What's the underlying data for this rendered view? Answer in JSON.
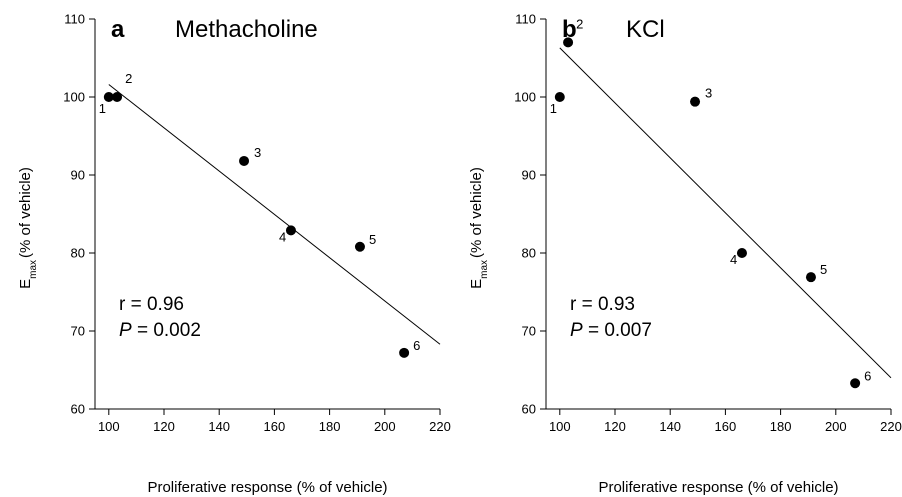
{
  "chart_data": [
    {
      "type": "scatter",
      "panel": "a",
      "title": "Methacholine",
      "xlabel": "Proliferative response (% of vehicle)",
      "ylabel_main": "E",
      "ylabel_sub": "max",
      "ylabel_rest": "(% of vehicle)",
      "xlim": [
        95,
        220
      ],
      "ylim": [
        60,
        110
      ],
      "xticks": [
        100,
        120,
        140,
        160,
        180,
        200,
        220
      ],
      "yticks": [
        60,
        70,
        80,
        90,
        100,
        110
      ],
      "points": [
        {
          "label": "1",
          "x": 100,
          "y": 100
        },
        {
          "label": "2",
          "x": 103,
          "y": 100
        },
        {
          "label": "3",
          "x": 149,
          "y": 91.8
        },
        {
          "label": "4",
          "x": 166,
          "y": 82.9
        },
        {
          "label": "5",
          "x": 191,
          "y": 80.8
        },
        {
          "label": "6",
          "x": 207,
          "y": 67.2
        }
      ],
      "fit": {
        "x": [
          100,
          220
        ],
        "y": [
          101.6,
          68.3
        ]
      },
      "stats": {
        "r_text": "r = 0.96",
        "p_symbol": "P",
        "p_value_text": " = 0.002"
      }
    },
    {
      "type": "scatter",
      "panel": "b",
      "title": "KCl",
      "xlabel": "Proliferative response (% of vehicle)",
      "ylabel_main": "E",
      "ylabel_sub": "max",
      "ylabel_rest": "(% of vehicle)",
      "xlim": [
        95,
        220
      ],
      "ylim": [
        60,
        110
      ],
      "xticks": [
        100,
        120,
        140,
        160,
        180,
        200,
        220
      ],
      "yticks": [
        60,
        70,
        80,
        90,
        100,
        110
      ],
      "points": [
        {
          "label": "1",
          "x": 100,
          "y": 100
        },
        {
          "label": "2",
          "x": 103,
          "y": 107
        },
        {
          "label": "3",
          "x": 149,
          "y": 99.4
        },
        {
          "label": "4",
          "x": 166,
          "y": 80
        },
        {
          "label": "5",
          "x": 191,
          "y": 76.9
        },
        {
          "label": "6",
          "x": 207,
          "y": 63.3
        }
      ],
      "fit": {
        "x": [
          100,
          220
        ],
        "y": [
          106.3,
          64
        ]
      },
      "stats": {
        "r_text": "r = 0.93",
        "p_symbol": "P",
        "p_value_text": " = 0.007"
      }
    }
  ]
}
